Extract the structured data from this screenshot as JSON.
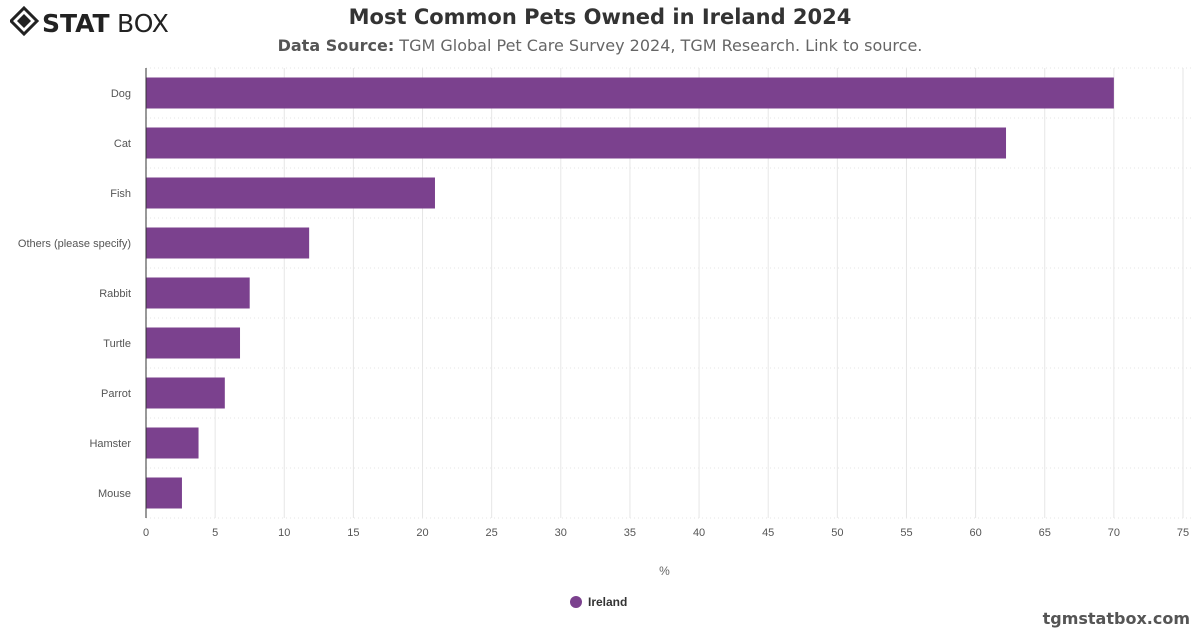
{
  "logo": {
    "text": "STATBOX"
  },
  "header": {
    "title": "Most Common Pets Owned in Ireland 2024",
    "source_label": "Data Source:",
    "source_text": " TGM Global Pet Care Survey 2024, TGM Research. Link to source."
  },
  "credit": "tgmstatbox.com",
  "colors": {
    "bar": "#7b418e"
  },
  "chart_data": {
    "type": "bar",
    "orientation": "horizontal",
    "categories": [
      "Dog",
      "Cat",
      "Fish",
      "Others (please specify)",
      "Rabbit",
      "Turtle",
      "Parrot",
      "Hamster",
      "Mouse"
    ],
    "series": [
      {
        "name": "Ireland",
        "values": [
          70,
          62.2,
          20.9,
          11.8,
          7.5,
          6.8,
          5.7,
          3.8,
          2.6
        ]
      }
    ],
    "xlabel": "%",
    "ylabel": "",
    "xlim": [
      0,
      75
    ],
    "xticks": [
      0,
      5,
      10,
      15,
      20,
      25,
      30,
      35,
      40,
      45,
      50,
      55,
      60,
      65,
      70,
      75
    ],
    "grid": true,
    "legend": "bottom"
  }
}
